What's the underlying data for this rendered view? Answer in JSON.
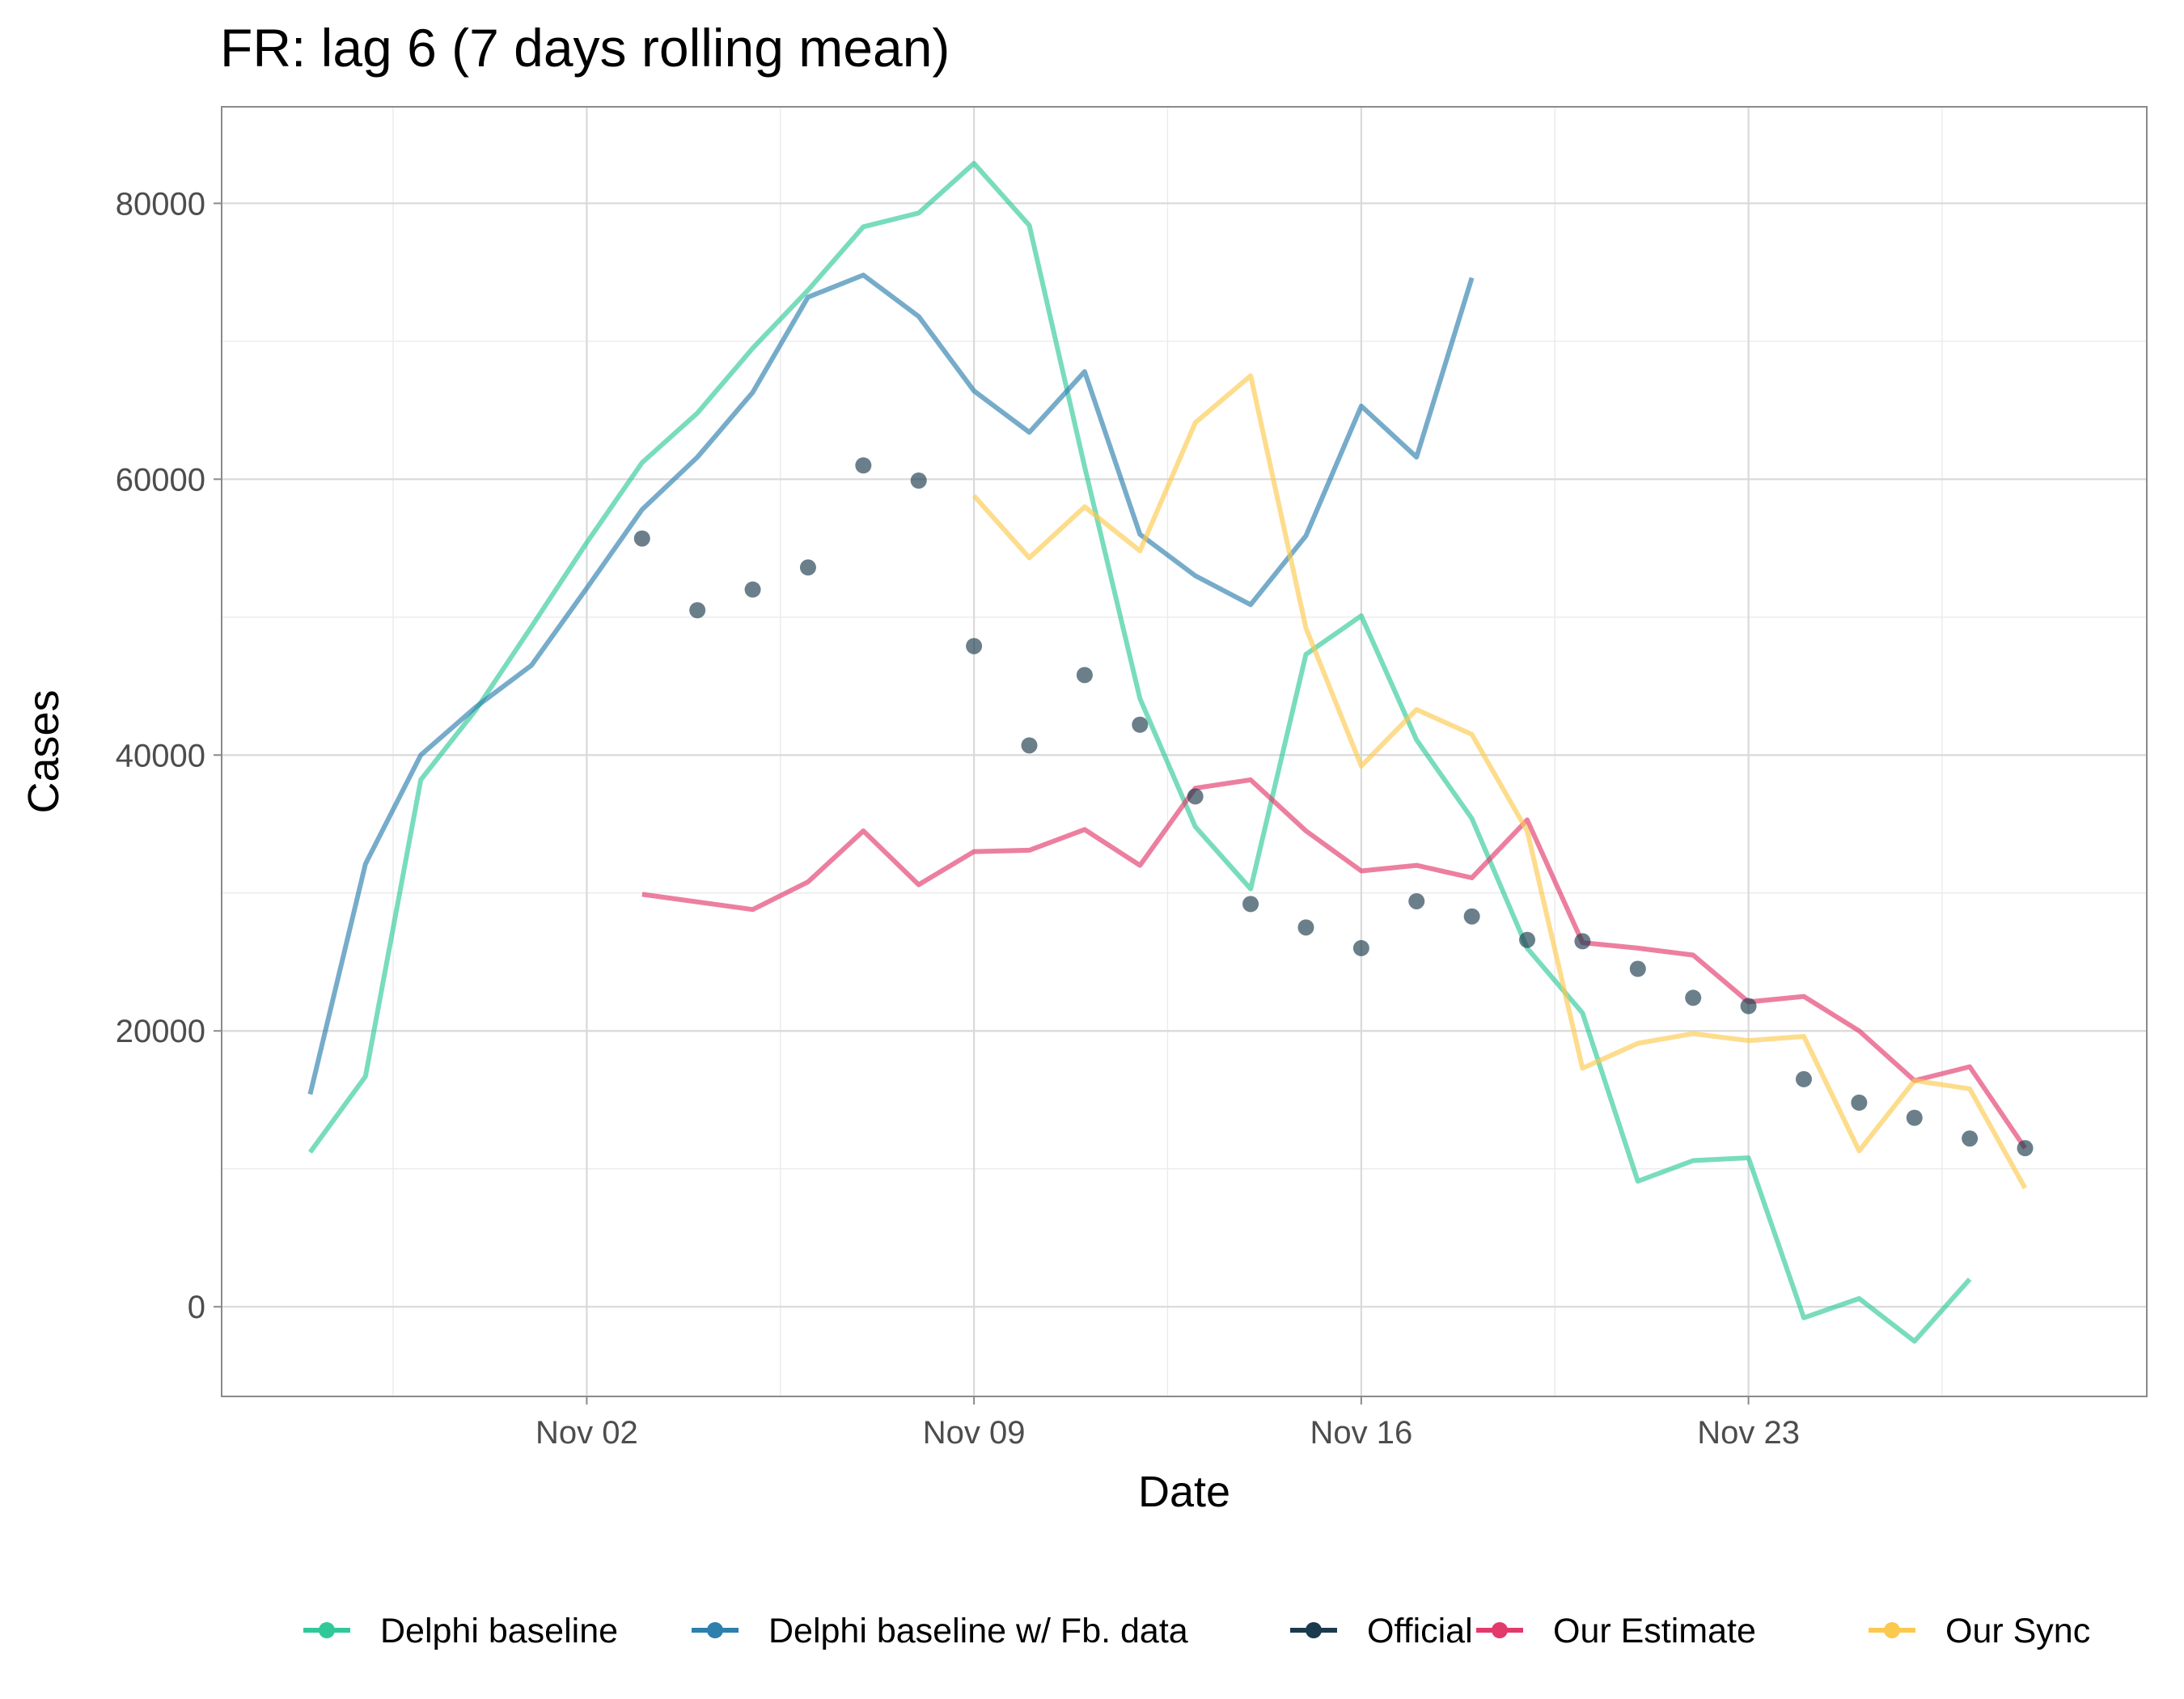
{
  "chart_data": {
    "type": "line",
    "title": "FR: lag 6 (7 days rolling mean)",
    "xlabel": "Date",
    "ylabel": "Cases",
    "x_tick_labels": [
      "Nov 02",
      "Nov 09",
      "Nov 16",
      "Nov 23"
    ],
    "y_tick_labels": [
      "0",
      "20000",
      "40000",
      "60000",
      "80000"
    ],
    "x_ticks": [
      2,
      9,
      16,
      23
    ],
    "y_ticks": [
      0,
      20000,
      40000,
      60000,
      80000
    ],
    "xlim": [
      -4.6,
      30.2
    ],
    "ylim": [
      -6500,
      87000
    ],
    "x_unit": "day of November 2020 (Oct 27 = -4)",
    "grid": true,
    "legend_position": "bottom",
    "series": [
      {
        "name": "Delphi baseline",
        "color": "#2FC999",
        "style": "line",
        "x": [
          -3,
          -2,
          -1,
          0,
          1,
          2,
          3,
          4,
          5,
          6,
          7,
          8,
          9,
          10,
          11,
          12,
          13,
          14,
          15,
          16,
          17,
          18,
          19,
          20,
          21,
          22,
          23,
          24,
          25,
          26,
          27
        ],
        "values": [
          11200,
          16700,
          38200,
          43300,
          49300,
          55400,
          61200,
          64800,
          69500,
          73700,
          78300,
          79300,
          82900,
          78400,
          60900,
          44100,
          34800,
          30300,
          47300,
          50100,
          41100,
          35400,
          26000,
          21300,
          9100,
          10600,
          10800,
          -800,
          600,
          -2500,
          2000
        ]
      },
      {
        "name": "Delphi baseline w/ Fb. data",
        "color": "#2D7FAD",
        "style": "line",
        "x": [
          -3,
          -2,
          -1,
          0,
          1,
          2,
          3,
          4,
          5,
          6,
          7,
          8,
          9,
          10,
          11,
          12,
          13,
          14,
          15,
          16,
          17,
          18
        ],
        "values": [
          15400,
          32100,
          40000,
          43500,
          46500,
          52100,
          57800,
          61600,
          66300,
          73200,
          74800,
          71800,
          66400,
          63400,
          67800,
          56000,
          53000,
          50900,
          55900,
          65300,
          61600,
          74600
        ]
      },
      {
        "name": "Official",
        "color": "#1C3A4D",
        "style": "points",
        "x": [
          3,
          4,
          5,
          6,
          7,
          8,
          9,
          10,
          11,
          12,
          13,
          14,
          15,
          16,
          17,
          18,
          19,
          20,
          21,
          22,
          23,
          24,
          25,
          26,
          27,
          28
        ],
        "values": [
          55700,
          50500,
          52000,
          53600,
          61000,
          59900,
          47900,
          40700,
          45800,
          42200,
          37000,
          29200,
          27500,
          26000,
          29400,
          28300,
          26600,
          26500,
          24500,
          22400,
          21800,
          16500,
          14800,
          13700,
          12200,
          11500
        ]
      },
      {
        "name": "Our Estimate",
        "color": "#E23A6B",
        "style": "line",
        "x": [
          3,
          5,
          6,
          7,
          8,
          9,
          10,
          11,
          12,
          13,
          14,
          15,
          16,
          17,
          18,
          19,
          20,
          21,
          22,
          23,
          24,
          25,
          26,
          27,
          28
        ],
        "values": [
          29900,
          28800,
          30800,
          34500,
          30600,
          33000,
          33100,
          34600,
          32000,
          37600,
          38200,
          34500,
          31600,
          32000,
          31100,
          35300,
          26400,
          26000,
          25500,
          22100,
          22500,
          20000,
          16400,
          17400,
          11500
        ]
      },
      {
        "name": "Our Sync",
        "color": "#FCC94F",
        "style": "line",
        "x": [
          9,
          10,
          11,
          12,
          13,
          14,
          15,
          16,
          17,
          18,
          19,
          20,
          21,
          22,
          23,
          24,
          25,
          26,
          27,
          28
        ],
        "values": [
          58800,
          54300,
          58000,
          54800,
          64100,
          67500,
          49200,
          39200,
          43300,
          41500,
          34500,
          17300,
          19100,
          19800,
          19300,
          19600,
          11300,
          16400,
          15800,
          8600
        ]
      }
    ]
  }
}
